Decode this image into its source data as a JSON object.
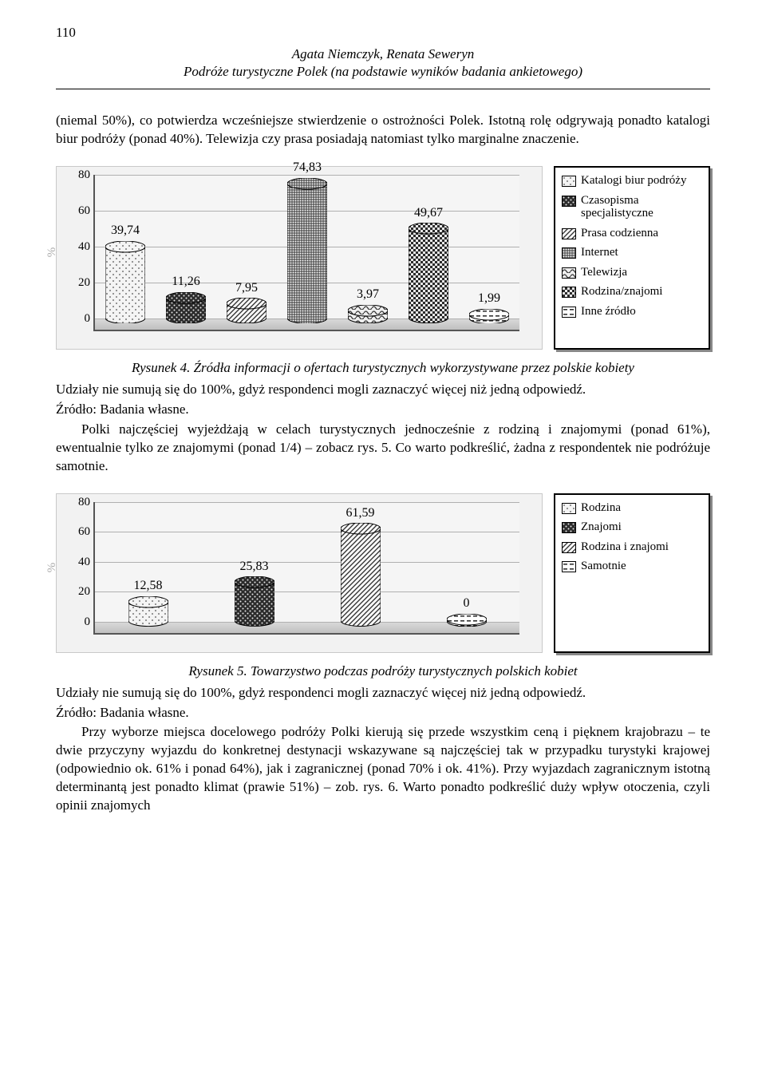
{
  "page_number": "110",
  "header": {
    "authors": "Agata Niemczyk, Renata Seweryn",
    "title": "Podróże turystyczne Polek (na podstawie wyników badania ankietowego)"
  },
  "para1": "(niemal 50%), co potwierdza wcześniejsze stwierdzenie o ostrożności Polek. Istotną rolę odgrywają ponadto katalogi biur podróży (ponad 40%). Telewizja czy prasa posiadają natomiast tylko marginalne znaczenie.",
  "chart1": {
    "type": "bar",
    "y_title": "%",
    "ylim": [
      0,
      80
    ],
    "ytick_step": 20,
    "yticks": [
      "0",
      "20",
      "40",
      "60",
      "80"
    ],
    "background_color": "#f2f2f2",
    "grid_color": "#b0b0b0",
    "floor_color": "#cccccc",
    "label_fontsize": 16,
    "bars": [
      {
        "value": 39.74,
        "label": "39,74",
        "fill": "dots-light",
        "stroke": "#000"
      },
      {
        "value": 11.26,
        "label": "11,26",
        "fill": "dots-dark",
        "stroke": "#000"
      },
      {
        "value": 7.95,
        "label": "7,95",
        "fill": "diag",
        "stroke": "#000"
      },
      {
        "value": 74.83,
        "label": "74,83",
        "fill": "grid",
        "stroke": "#000"
      },
      {
        "value": 3.97,
        "label": "3,97",
        "fill": "wave",
        "stroke": "#000"
      },
      {
        "value": 49.67,
        "label": "49,67",
        "fill": "checker",
        "stroke": "#000"
      },
      {
        "value": 1.99,
        "label": "1,99",
        "fill": "dashes",
        "stroke": "#000"
      }
    ],
    "legend": [
      {
        "label": "Katalogi biur podróży",
        "fill": "dots-light"
      },
      {
        "label": "Czasopisma specjalistyczne",
        "fill": "dots-dark"
      },
      {
        "label": "Prasa codzienna",
        "fill": "diag"
      },
      {
        "label": "Internet",
        "fill": "grid"
      },
      {
        "label": "Telewizja",
        "fill": "wave"
      },
      {
        "label": "Rodzina/znajomi",
        "fill": "checker"
      },
      {
        "label": "Inne źródło",
        "fill": "dashes"
      }
    ]
  },
  "fig4_caption": "Rysunek 4. Źródła informacji o ofertach turystycznych wykorzystywane przez polskie kobiety",
  "fig4_note1": "Udziały nie sumują się do 100%, gdyż respondenci mogli zaznaczyć więcej niż jedną odpowiedź.",
  "fig4_note2": "Źródło: Badania własne.",
  "para2": "Polki najczęściej wyjeżdżają w celach turystycznych jednocześnie z rodziną i znajomymi (ponad 61%), ewentualnie tylko ze znajomymi (ponad 1/4) – zobacz rys. 5. Co warto podkreślić, żadna z respondentek nie podróżuje samotnie.",
  "chart2": {
    "type": "bar",
    "y_title": "%",
    "ylim": [
      0,
      80
    ],
    "ytick_step": 20,
    "yticks": [
      "0",
      "20",
      "40",
      "60",
      "80"
    ],
    "background_color": "#f2f2f2",
    "grid_color": "#b0b0b0",
    "floor_color": "#cccccc",
    "label_fontsize": 16,
    "bars": [
      {
        "value": 12.58,
        "label": "12,58",
        "fill": "dots-light",
        "stroke": "#000"
      },
      {
        "value": 25.83,
        "label": "25,83",
        "fill": "dots-dark",
        "stroke": "#000"
      },
      {
        "value": 61.59,
        "label": "61,59",
        "fill": "diag",
        "stroke": "#000"
      },
      {
        "value": 0.0,
        "label": "0",
        "fill": "dashes",
        "stroke": "#000"
      }
    ],
    "legend": [
      {
        "label": "Rodzina",
        "fill": "dots-light"
      },
      {
        "label": "Znajomi",
        "fill": "dots-dark"
      },
      {
        "label": "Rodzina i znajomi",
        "fill": "diag"
      },
      {
        "label": "Samotnie",
        "fill": "dashes"
      }
    ]
  },
  "fig5_caption": "Rysunek 5. Towarzystwo podczas podróży turystycznych polskich kobiet",
  "fig5_note1": "Udziały nie sumują się do 100%, gdyż respondenci mogli zaznaczyć więcej niż jedną odpowiedź.",
  "fig5_note2": "Źródło: Badania własne.",
  "para3": "Przy wyborze miejsca docelowego podróży Polki kierują się przede wszystkim ceną i pięknem krajobrazu – te dwie przyczyny wyjazdu do konkretnej destynacji wskazywane są najczęściej tak w przypadku turystyki krajowej (odpowiednio ok. 61% i ponad 64%), jak i zagranicznej (ponad 70% i ok. 41%). Przy wyjazdach zagranicznym istotną determinantą jest ponadto klimat (prawie 51%) – zob. rys. 6. Warto ponadto podkreślić duży wpływ otoczenia, czyli opinii znajomych"
}
